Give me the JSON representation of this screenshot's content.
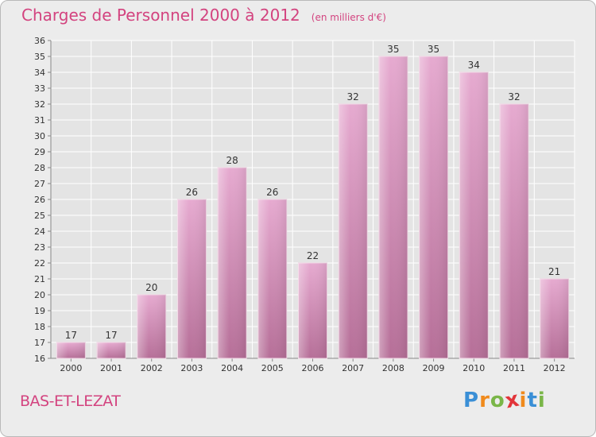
{
  "header": {
    "title": "Charges de Personnel 2000 à 2012",
    "subtitle": "(en milliers d'€)"
  },
  "footer": {
    "place": "BAS-ET-LEZAT",
    "logo_letters": [
      {
        "char": "P",
        "color": "#3a8fd6"
      },
      {
        "char": "r",
        "color": "#f08a1c"
      },
      {
        "char": "o",
        "color": "#7ab648"
      },
      {
        "char": "x",
        "color": "#e2343a"
      },
      {
        "char": "i",
        "color": "#f08a1c"
      },
      {
        "char": "t",
        "color": "#3a8fd6"
      },
      {
        "char": "i",
        "color": "#7ab648"
      }
    ]
  },
  "colors": {
    "bar_fill": "#e2a4c8",
    "bar_dark": "#c97aa8",
    "title": "#d3437f",
    "grid": "#ffffff",
    "background": "#ececec"
  },
  "chart_data": {
    "type": "bar",
    "categories": [
      "2000",
      "2001",
      "2002",
      "2003",
      "2004",
      "2005",
      "2006",
      "2007",
      "2008",
      "2009",
      "2010",
      "2011",
      "2012"
    ],
    "values": [
      17,
      17,
      20,
      26,
      28,
      26,
      22,
      32,
      35,
      35,
      34,
      32,
      21
    ],
    "ylim": [
      16,
      36
    ],
    "yticks": [
      16,
      17,
      18,
      19,
      20,
      21,
      22,
      23,
      24,
      25,
      26,
      27,
      28,
      29,
      30,
      31,
      32,
      33,
      34,
      35,
      36
    ],
    "grid": true,
    "data_labels": true
  }
}
